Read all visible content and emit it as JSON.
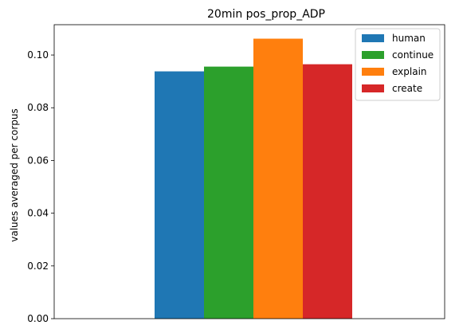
{
  "chart_data": {
    "type": "bar",
    "title": "20min pos_prop_ADP",
    "xlabel": "",
    "ylabel": "values averaged per corpus",
    "ylim": [
      0,
      0.1115
    ],
    "yticks": [
      0.0,
      0.02,
      0.04,
      0.06,
      0.08,
      0.1
    ],
    "ytick_labels": [
      "0.00",
      "0.02",
      "0.04",
      "0.06",
      "0.08",
      "0.10"
    ],
    "categories": [
      ""
    ],
    "series": [
      {
        "name": "human",
        "color": "#1f77b4",
        "values": [
          0.0938
        ]
      },
      {
        "name": "continue",
        "color": "#2ca02c",
        "values": [
          0.0956
        ]
      },
      {
        "name": "explain",
        "color": "#ff7f0e",
        "values": [
          0.1062
        ]
      },
      {
        "name": "create",
        "color": "#d62728",
        "values": [
          0.0965
        ]
      }
    ],
    "legend": {
      "placement": "top-right"
    },
    "grid": false
  }
}
